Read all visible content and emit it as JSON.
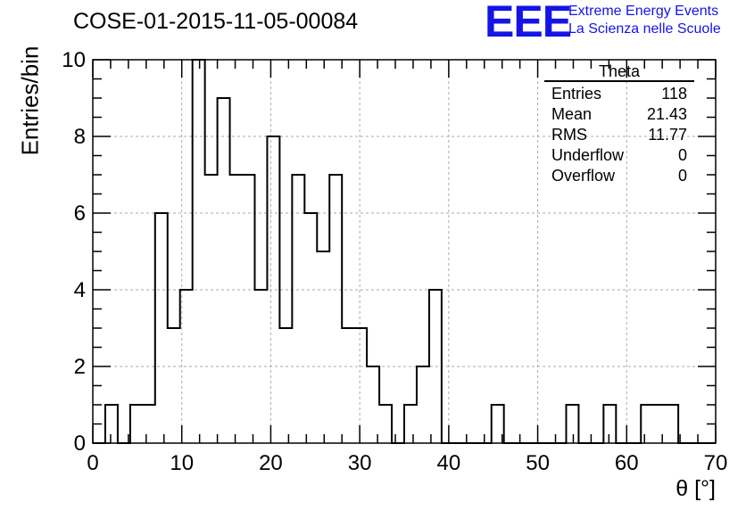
{
  "header": {
    "title": "COSE-01-2015-11-05-00084",
    "logo_text": "EEE",
    "logo_line1": "Extreme Energy Events",
    "logo_line2": "La Scienza nelle Scuole"
  },
  "stats": {
    "title": "Theta",
    "rows": [
      {
        "label": "Entries",
        "value": "118"
      },
      {
        "label": "Mean",
        "value": "21.43"
      },
      {
        "label": "RMS",
        "value": "11.77"
      },
      {
        "label": "Underflow",
        "value": "0"
      },
      {
        "label": "Overflow",
        "value": "0"
      }
    ]
  },
  "chart_data": {
    "type": "bar",
    "title": "COSE-01-2015-11-05-00084",
    "xlabel": "θ [°]",
    "ylabel": "Entries/bin",
    "xlim": [
      0,
      70
    ],
    "ylim": [
      0,
      10
    ],
    "grid": true,
    "histogram": true,
    "bin_edges": [
      0,
      1.4,
      2.8,
      4.2,
      5.6,
      7.0,
      8.4,
      9.8,
      11.2,
      12.6,
      14.0,
      15.4,
      16.8,
      18.2,
      19.6,
      21.0,
      22.4,
      23.8,
      25.2,
      26.6,
      28.0,
      29.4,
      30.8,
      32.2,
      33.6,
      35.0,
      36.4,
      37.8,
      39.2,
      40.6,
      42.0,
      43.4,
      44.8,
      46.2,
      47.6,
      49.0,
      50.4,
      51.8,
      53.2,
      54.6,
      56.0,
      57.4,
      58.8,
      60.2,
      61.6,
      63.0,
      64.4,
      65.8,
      67.2,
      68.6,
      70.0
    ],
    "values": [
      0,
      1,
      0,
      1,
      1,
      6,
      3,
      4,
      10,
      7,
      9,
      7,
      7,
      4,
      8,
      3,
      7,
      6,
      5,
      7,
      3,
      3,
      2,
      1,
      0,
      1,
      2,
      4,
      0,
      0,
      0,
      0,
      1,
      0,
      0,
      0,
      0,
      0,
      1,
      0,
      0,
      1,
      0,
      0,
      1,
      1,
      1,
      0,
      0,
      0
    ],
    "xticks": [
      0,
      10,
      20,
      30,
      40,
      50,
      60,
      70
    ],
    "yticks": [
      0,
      2,
      4,
      6,
      8,
      10
    ]
  },
  "colors": {
    "line": "#000000",
    "grid": "#aaaaaa",
    "logo": "#1414e6"
  }
}
